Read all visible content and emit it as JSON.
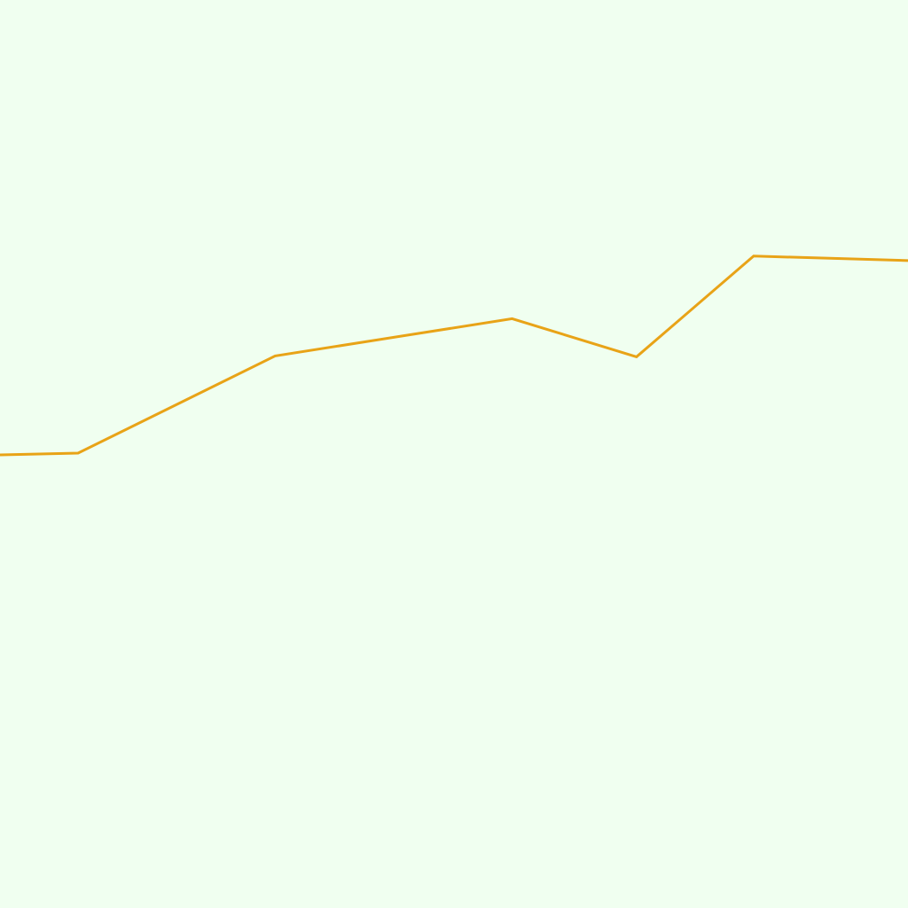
{
  "colors": {
    "background": "#f0fff0",
    "line": "#e8a317"
  },
  "chart_data": {
    "type": "line",
    "title": "",
    "xlabel": "",
    "ylabel": "",
    "grid": false,
    "legend": "none",
    "xlim": [
      0,
      10
    ],
    "ylim": [
      0,
      10
    ],
    "series": [
      {
        "color": "#e8a317",
        "x": [
          0,
          0.86,
          3.03,
          5.64,
          7.01,
          8.3,
          10
        ],
        "y": [
          4.99,
          5.01,
          6.08,
          6.49,
          6.07,
          7.18,
          7.13
        ]
      }
    ]
  }
}
